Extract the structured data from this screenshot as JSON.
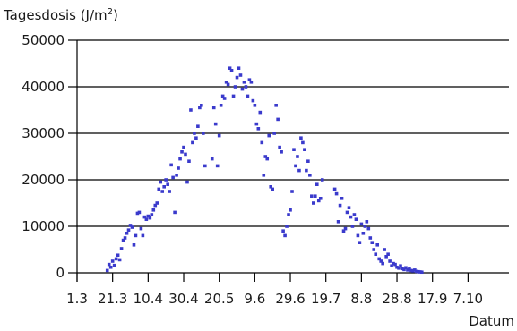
{
  "chart_data": {
    "type": "scatter",
    "title": "",
    "ylabel": "Tagesdosis (J/m",
    "ylabel_sup": "2",
    "ylabel_close": ")",
    "xlabel": "Datum",
    "ylim": [
      0,
      50000
    ],
    "y_ticks": [
      0,
      10000,
      20000,
      30000,
      40000,
      50000
    ],
    "xlim": [
      0,
      243
    ],
    "x_ticks": [
      {
        "day": 0,
        "label": "1.3"
      },
      {
        "day": 20,
        "label": "21.3"
      },
      {
        "day": 40,
        "label": "10.4"
      },
      {
        "day": 60,
        "label": "30.4"
      },
      {
        "day": 80,
        "label": "20.5"
      },
      {
        "day": 100,
        "label": "9.6"
      },
      {
        "day": 120,
        "label": "29.6"
      },
      {
        "day": 140,
        "label": "19.7"
      },
      {
        "day": 160,
        "label": "8.8"
      },
      {
        "day": 180,
        "label": "28.8"
      },
      {
        "day": 200,
        "label": "17.9"
      },
      {
        "day": 220,
        "label": "7.10"
      }
    ],
    "grid": "horizontal",
    "marker_color": "#3a3acc",
    "gridline_color": "#000000",
    "series": [
      {
        "points": [
          [
            17,
            500
          ],
          [
            18,
            1800
          ],
          [
            19,
            1200
          ],
          [
            20,
            2500
          ],
          [
            21,
            1600
          ],
          [
            22,
            3000
          ],
          [
            23,
            3800
          ],
          [
            24,
            2800
          ],
          [
            25,
            5200
          ],
          [
            26,
            7000
          ],
          [
            27,
            7500
          ],
          [
            28,
            8500
          ],
          [
            29,
            9200
          ],
          [
            30,
            10200
          ],
          [
            31,
            9800
          ],
          [
            32,
            6000
          ],
          [
            33,
            8000
          ],
          [
            34,
            12800
          ],
          [
            35,
            13000
          ],
          [
            36,
            9500
          ],
          [
            37,
            8000
          ],
          [
            38,
            12000
          ],
          [
            39,
            11500
          ],
          [
            40,
            12200
          ],
          [
            41,
            11800
          ],
          [
            42,
            12500
          ],
          [
            43,
            13500
          ],
          [
            44,
            14500
          ],
          [
            45,
            15000
          ],
          [
            46,
            18000
          ],
          [
            47,
            19500
          ],
          [
            48,
            17500
          ],
          [
            49,
            18500
          ],
          [
            50,
            20000
          ],
          [
            51,
            19000
          ],
          [
            52,
            17500
          ],
          [
            53,
            23200
          ],
          [
            54,
            20500
          ],
          [
            55,
            13000
          ],
          [
            56,
            21000
          ],
          [
            57,
            22500
          ],
          [
            58,
            24500
          ],
          [
            59,
            26000
          ],
          [
            60,
            27000
          ],
          [
            61,
            25500
          ],
          [
            62,
            19500
          ],
          [
            63,
            24000
          ],
          [
            64,
            35000
          ],
          [
            65,
            28000
          ],
          [
            66,
            30000
          ],
          [
            67,
            29000
          ],
          [
            68,
            31500
          ],
          [
            69,
            35500
          ],
          [
            70,
            36000
          ],
          [
            71,
            30000
          ],
          [
            72,
            23000
          ],
          [
            76,
            24500
          ],
          [
            77,
            35500
          ],
          [
            78,
            32000
          ],
          [
            79,
            23000
          ],
          [
            80,
            29500
          ],
          [
            81,
            36000
          ],
          [
            82,
            38000
          ],
          [
            83,
            37500
          ],
          [
            84,
            41000
          ],
          [
            85,
            40500
          ],
          [
            86,
            44000
          ],
          [
            87,
            43500
          ],
          [
            88,
            38000
          ],
          [
            89,
            40000
          ],
          [
            90,
            42000
          ],
          [
            91,
            44000
          ],
          [
            92,
            42500
          ],
          [
            93,
            39500
          ],
          [
            94,
            41000
          ],
          [
            95,
            40000
          ],
          [
            96,
            38000
          ],
          [
            97,
            41500
          ],
          [
            98,
            41000
          ],
          [
            99,
            37000
          ],
          [
            100,
            36000
          ],
          [
            101,
            32000
          ],
          [
            102,
            31000
          ],
          [
            103,
            34500
          ],
          [
            104,
            28000
          ],
          [
            105,
            21000
          ],
          [
            106,
            25000
          ],
          [
            107,
            24500
          ],
          [
            108,
            29500
          ],
          [
            109,
            18500
          ],
          [
            110,
            18000
          ],
          [
            111,
            30000
          ],
          [
            112,
            36000
          ],
          [
            113,
            33000
          ],
          [
            114,
            27000
          ],
          [
            115,
            26000
          ],
          [
            116,
            9000
          ],
          [
            117,
            8000
          ],
          [
            118,
            10000
          ],
          [
            119,
            12500
          ],
          [
            120,
            13500
          ],
          [
            121,
            17500
          ],
          [
            122,
            26500
          ],
          [
            123,
            23000
          ],
          [
            124,
            25000
          ],
          [
            125,
            22000
          ],
          [
            126,
            29000
          ],
          [
            127,
            28000
          ],
          [
            128,
            26500
          ],
          [
            129,
            22000
          ],
          [
            130,
            24000
          ],
          [
            131,
            21000
          ],
          [
            132,
            16500
          ],
          [
            133,
            15000
          ],
          [
            134,
            16500
          ],
          [
            135,
            19000
          ],
          [
            136,
            15500
          ],
          [
            137,
            16000
          ],
          [
            138,
            20000
          ],
          [
            145,
            18000
          ],
          [
            146,
            17000
          ],
          [
            147,
            11000
          ],
          [
            148,
            14500
          ],
          [
            149,
            16000
          ],
          [
            150,
            9000
          ],
          [
            151,
            9500
          ],
          [
            152,
            13000
          ],
          [
            153,
            14000
          ],
          [
            154,
            12000
          ],
          [
            155,
            10000
          ],
          [
            156,
            12500
          ],
          [
            157,
            11500
          ],
          [
            158,
            8000
          ],
          [
            159,
            6500
          ],
          [
            160,
            10500
          ],
          [
            161,
            8500
          ],
          [
            162,
            10000
          ],
          [
            163,
            11000
          ],
          [
            164,
            9500
          ],
          [
            165,
            7500
          ],
          [
            166,
            6500
          ],
          [
            167,
            5000
          ],
          [
            168,
            4000
          ],
          [
            169,
            6000
          ],
          [
            170,
            3000
          ],
          [
            171,
            2500
          ],
          [
            172,
            2000
          ],
          [
            173,
            5000
          ],
          [
            174,
            3500
          ],
          [
            175,
            4000
          ],
          [
            176,
            2500
          ],
          [
            177,
            1500
          ],
          [
            178,
            2000
          ],
          [
            179,
            1800
          ],
          [
            180,
            1200
          ],
          [
            181,
            1000
          ],
          [
            182,
            1500
          ],
          [
            183,
            900
          ],
          [
            184,
            700
          ],
          [
            185,
            1100
          ],
          [
            186,
            600
          ],
          [
            187,
            800
          ],
          [
            188,
            500
          ],
          [
            189,
            400
          ],
          [
            190,
            600
          ],
          [
            191,
            300
          ],
          [
            192,
            250
          ],
          [
            193,
            200
          ],
          [
            194,
            150
          ]
        ]
      }
    ]
  }
}
